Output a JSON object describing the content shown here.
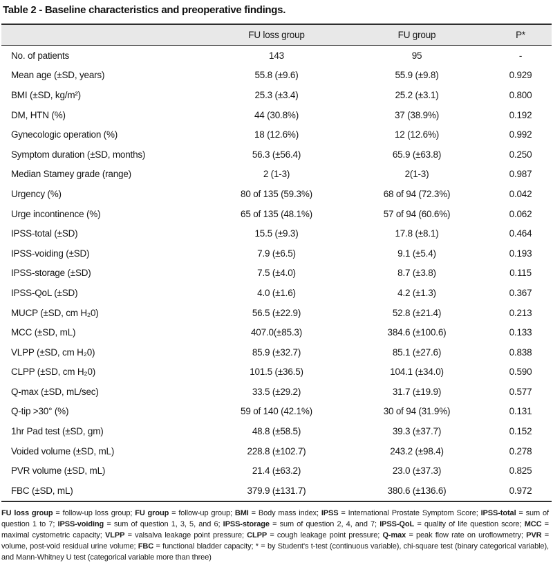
{
  "title": "Table 2 - Baseline characteristics and preoperative findings.",
  "colors": {
    "header_bg": "#e8e8e8",
    "rule": "#2e2e2e",
    "text": "#151515"
  },
  "table": {
    "columns": [
      "",
      "FU loss group",
      "FU group",
      "P*"
    ],
    "rows": [
      {
        "label": "No. of patients",
        "fu_loss": "143",
        "fu_group": "95",
        "p": "-"
      },
      {
        "label": "Mean age (±SD, years)",
        "fu_loss": "55.8 (±9.6)",
        "fu_group": "55.9 (±9.8)",
        "p": "0.929"
      },
      {
        "label": "BMI (±SD, kg/m²)",
        "fu_loss": "25.3 (±3.4)",
        "fu_group": "25.2 (±3.1)",
        "p": "0.800"
      },
      {
        "label": "DM, HTN (%)",
        "fu_loss": "44 (30.8%)",
        "fu_group": "37 (38.9%)",
        "p": "0.192"
      },
      {
        "label": "Gynecologic operation (%)",
        "fu_loss": "18 (12.6%)",
        "fu_group": "12 (12.6%)",
        "p": "0.992"
      },
      {
        "label": "Symptom duration (±SD, months)",
        "fu_loss": "56.3 (±56.4)",
        "fu_group": "65.9 (±63.8)",
        "p": "0.250"
      },
      {
        "label": "Median Stamey grade (range)",
        "fu_loss": "2 (1-3)",
        "fu_group": "2(1-3)",
        "p": "0.987"
      },
      {
        "label": "Urgency (%)",
        "fu_loss": "80 of 135 (59.3%)",
        "fu_group": "68 of 94 (72.3%)",
        "p": "0.042"
      },
      {
        "label": "Urge incontinence (%)",
        "fu_loss": "65 of 135 (48.1%)",
        "fu_group": "57 of 94 (60.6%)",
        "p": "0.062"
      },
      {
        "label": "IPSS-total (±SD)",
        "fu_loss": "15.5 (±9.3)",
        "fu_group": "17.8 (±8.1)",
        "p": "0.464"
      },
      {
        "label": "IPSS-voiding (±SD)",
        "fu_loss": "7.9 (±6.5)",
        "fu_group": "9.1 (±5.4)",
        "p": "0.193"
      },
      {
        "label": "IPSS-storage (±SD)",
        "fu_loss": "7.5 (±4.0)",
        "fu_group": "8.7 (±3.8)",
        "p": "0.115"
      },
      {
        "label": "IPSS-QoL (±SD)",
        "fu_loss": "4.0 (±1.6)",
        "fu_group": "4.2 (±1.3)",
        "p": "0.367"
      },
      {
        "label": "MUCP (±SD, cm H₂0)",
        "fu_loss": "56.5 (±22.9)",
        "fu_group": "52.8 (±21.4)",
        "p": "0.213"
      },
      {
        "label": "MCC (±SD, mL)",
        "fu_loss": "407.0(±85.3)",
        "fu_group": "384.6 (±100.6)",
        "p": "0.133"
      },
      {
        "label": "VLPP (±SD, cm H₂0)",
        "fu_loss": "85.9 (±32.7)",
        "fu_group": "85.1 (±27.6)",
        "p": "0.838"
      },
      {
        "label": "CLPP (±SD, cm H₂0)",
        "fu_loss": "101.5 (±36.5)",
        "fu_group": "104.1 (±34.0)",
        "p": "0.590"
      },
      {
        "label": "Q-max (±SD, mL/sec)",
        "fu_loss": "33.5 (±29.2)",
        "fu_group": "31.7 (±19.9)",
        "p": "0.577"
      },
      {
        "label": "Q-tip >30° (%)",
        "fu_loss": "59 of 140 (42.1%)",
        "fu_group": "30 of 94 (31.9%)",
        "p": "0.131"
      },
      {
        "label": "1hr Pad test (±SD, gm)",
        "fu_loss": "48.8 (±58.5)",
        "fu_group": "39.3 (±37.7)",
        "p": "0.152"
      },
      {
        "label": "Voided volume (±SD, mL)",
        "fu_loss": "228.8 (±102.7)",
        "fu_group": "243.2 (±98.4)",
        "p": "0.278"
      },
      {
        "label": "PVR volume (±SD, mL)",
        "fu_loss": "21.4 (±63.2)",
        "fu_group": "23.0 (±37.3)",
        "p": "0.825"
      },
      {
        "label": "FBC (±SD, mL)",
        "fu_loss": "379.9 (±131.7)",
        "fu_group": "380.6 (±136.6)",
        "p": "0.972"
      }
    ]
  },
  "footnote": {
    "defs": [
      {
        "term": "FU loss group",
        "def": " = follow-up loss group; "
      },
      {
        "term": "FU group",
        "def": " = follow-up group; "
      },
      {
        "term": "BMI",
        "def": " = Body mass index; "
      },
      {
        "term": "IPSS",
        "def": " = International Prostate Symptom Score; "
      },
      {
        "term": "IPSS-total",
        "def": " = sum of question 1 to 7; "
      },
      {
        "term": "IPSS-voiding",
        "def": " = sum of question 1, 3, 5, and 6; "
      },
      {
        "term": "IPSS-storage",
        "def": " = sum of question 2, 4, and 7; "
      },
      {
        "term": "IPSS-QoL",
        "def": " = quality of life question score; "
      },
      {
        "term": "MCC",
        "def": " = maximal cystometric capacity; "
      },
      {
        "term": "VLPP",
        "def": " = valsalva leakage point pressure; "
      },
      {
        "term": "CLPP",
        "def": " = cough leakage point pressure; "
      },
      {
        "term": "Q-max",
        "def": " = peak flow rate on uroflowmetry; "
      },
      {
        "term": "PVR",
        "def": " = volume, post-void residual urine volume; "
      },
      {
        "term": "FBC",
        "def": " = functional bladder capacity; * = by Student's t-test (continuous variable), chi-square test (binary categorical variable), and Mann-Whitney U test (categorical variable more than three)"
      }
    ]
  }
}
